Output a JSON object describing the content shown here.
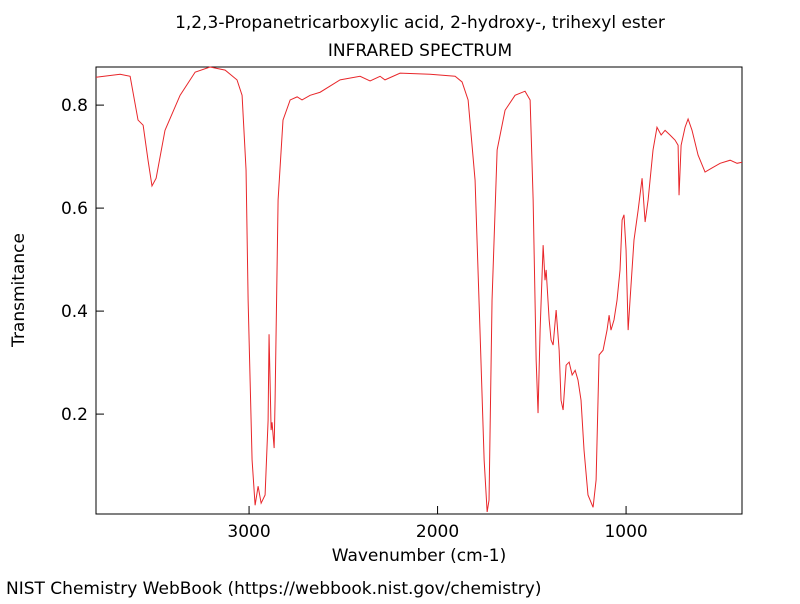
{
  "chart_data": {
    "type": "line",
    "title": "1,2,3-Propanetricarboxylic acid, 2-hydroxy-, trihexyl ester",
    "subtitle": "INFRARED SPECTRUM",
    "x_label": "Wavenumber (cm-1)",
    "y_label": "Transmitance",
    "footer": "NIST Chemistry WebBook (https://webbook.nist.gov/chemistry)",
    "color": "#e8262a",
    "xlim": [
      3812,
      385
    ],
    "ylim": [
      0.006,
      0.874
    ],
    "xticks": [
      3000,
      2000,
      1000
    ],
    "yticks": [
      0.2,
      0.4,
      0.6,
      0.8
    ],
    "x": [
      3812,
      3684,
      3631,
      3589,
      3562,
      3536,
      3515,
      3493,
      3446,
      3366,
      3286,
      3207,
      3127,
      3064,
      3037,
      3016,
      3005,
      2984,
      2968,
      2952,
      2936,
      2915,
      2899,
      2894,
      2883,
      2878,
      2867,
      2862,
      2846,
      2820,
      2782,
      2745,
      2719,
      2676,
      2623,
      2517,
      2411,
      2358,
      2305,
      2279,
      2199,
      2040,
      1907,
      1870,
      1838,
      1801,
      1775,
      1753,
      1737,
      1727,
      1711,
      1684,
      1642,
      1589,
      1536,
      1509,
      1493,
      1477,
      1467,
      1456,
      1440,
      1430,
      1424,
      1408,
      1398,
      1387,
      1371,
      1355,
      1345,
      1334,
      1318,
      1302,
      1286,
      1270,
      1255,
      1239,
      1223,
      1202,
      1175,
      1159,
      1143,
      1122,
      1101,
      1090,
      1080,
      1064,
      1048,
      1032,
      1021,
      1011,
      1000,
      989,
      979,
      958,
      936,
      915,
      899,
      883,
      857,
      836,
      814,
      793,
      767,
      740,
      724,
      719,
      708,
      687,
      671,
      650,
      618,
      581,
      544,
      501,
      448,
      411,
      385
    ],
    "values": [
      0.854,
      0.86,
      0.856,
      0.771,
      0.761,
      0.693,
      0.643,
      0.658,
      0.751,
      0.819,
      0.864,
      0.874,
      0.868,
      0.849,
      0.819,
      0.674,
      0.421,
      0.111,
      0.023,
      0.06,
      0.027,
      0.043,
      0.188,
      0.355,
      0.169,
      0.184,
      0.134,
      0.227,
      0.616,
      0.771,
      0.81,
      0.816,
      0.81,
      0.819,
      0.825,
      0.849,
      0.856,
      0.847,
      0.856,
      0.849,
      0.862,
      0.86,
      0.856,
      0.845,
      0.81,
      0.654,
      0.363,
      0.111,
      0.01,
      0.033,
      0.421,
      0.713,
      0.79,
      0.819,
      0.827,
      0.81,
      0.616,
      0.305,
      0.202,
      0.363,
      0.528,
      0.46,
      0.48,
      0.383,
      0.344,
      0.334,
      0.402,
      0.324,
      0.227,
      0.208,
      0.295,
      0.301,
      0.276,
      0.285,
      0.266,
      0.227,
      0.13,
      0.043,
      0.019,
      0.072,
      0.315,
      0.324,
      0.363,
      0.392,
      0.363,
      0.383,
      0.421,
      0.48,
      0.577,
      0.587,
      0.518,
      0.363,
      0.421,
      0.538,
      0.596,
      0.658,
      0.573,
      0.616,
      0.713,
      0.757,
      0.742,
      0.751,
      0.742,
      0.732,
      0.722,
      0.625,
      0.722,
      0.757,
      0.773,
      0.751,
      0.703,
      0.67,
      0.678,
      0.687,
      0.693,
      0.687,
      0.689
    ]
  }
}
